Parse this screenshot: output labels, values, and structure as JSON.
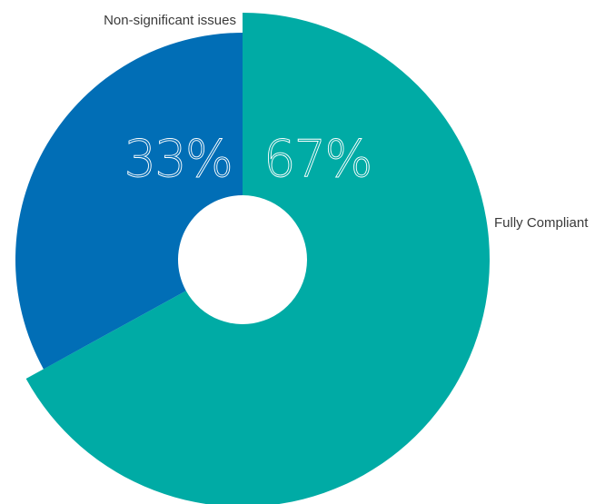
{
  "chart_data": {
    "type": "pie",
    "style": "donut",
    "slices": [
      {
        "label": "Fully Compliant",
        "value": 67,
        "value_label": "67%",
        "color": "#00aba5"
      },
      {
        "label": "Non-significant issues",
        "value": 33,
        "value_label": "33%",
        "color": "#016eb6"
      }
    ],
    "title": "",
    "legend": "none"
  }
}
